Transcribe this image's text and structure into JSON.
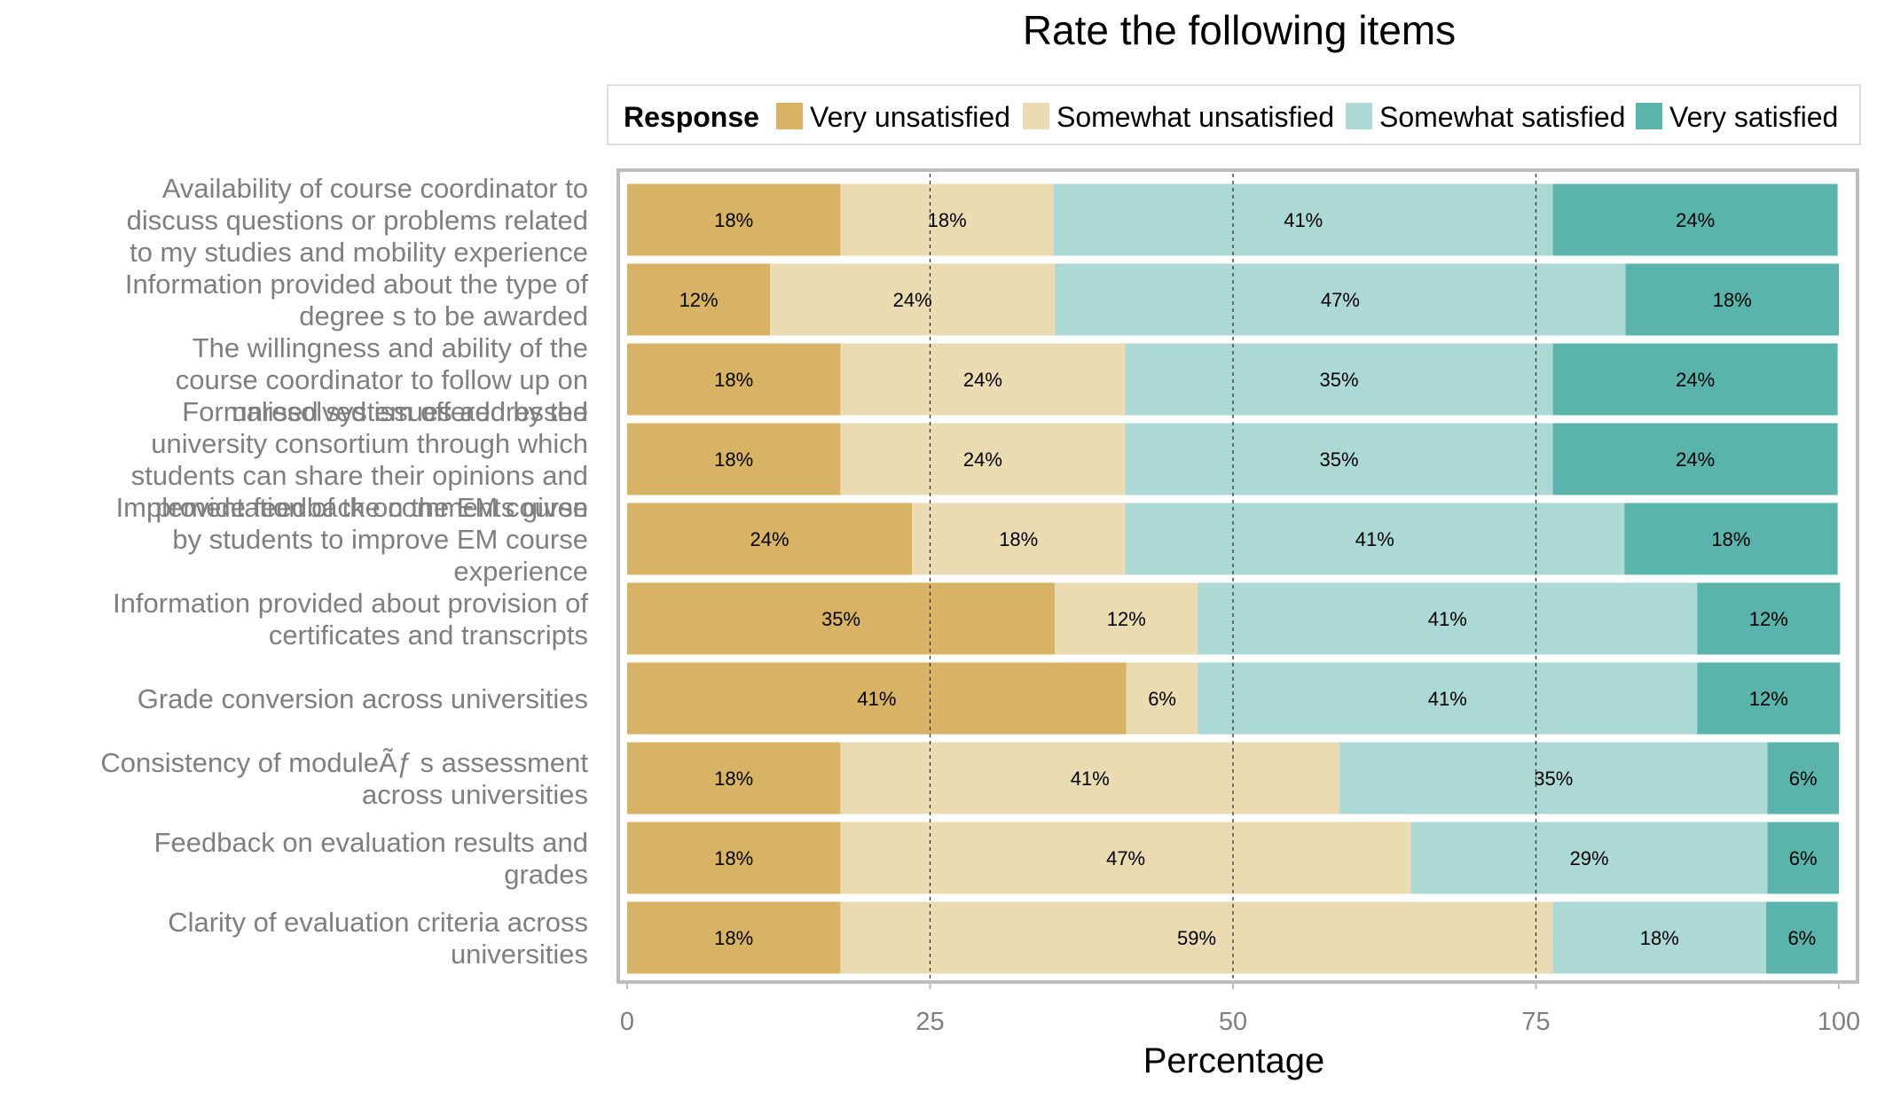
{
  "chart_data": {
    "type": "bar",
    "orientation": "horizontal",
    "stacked": true,
    "title": "Rate the following items",
    "xlabel": "Percentage",
    "ylabel": "",
    "xlim": [
      0,
      100
    ],
    "x_ticks": [
      0,
      25,
      50,
      75,
      100
    ],
    "grid": "dashed vertical lines at 25, 50, 75",
    "legend": {
      "title": "Response",
      "position": "top"
    },
    "categories": [
      "Availability of course coordinator to discuss questions or problems related to my studies and mobility experience",
      "Information provided about the type of degree s to be awarded",
      "The willingness and ability of the course coordinator to follow up on unresolved issues addressed",
      "Formalised system offered by the university consortium through which students can share their opinions and provide feedback on the EM course",
      "Implementation of the comments given by students to improve EM course experience",
      "Information provided about provision of certificates and transcripts",
      "Grade conversion across universities",
      "Consistency of moduleÃƒ s assessment across universities",
      "Feedback on evaluation results and grades",
      "Clarity of evaluation criteria across universities"
    ],
    "category_lines": [
      [
        "Availability of course coordinator to",
        "discuss questions or problems related",
        "to my studies and mobility experience"
      ],
      [
        "Information provided about the type of",
        "degree s to be awarded"
      ],
      [
        "The willingness and ability of the",
        "course coordinator to follow up on",
        "unresolved issues addressed"
      ],
      [
        "Formalised system offered by the",
        "university consortium through which",
        "students can share their opinions and",
        "provide feedback on the EM course"
      ],
      [
        "Implementation of the comments given",
        "by students to improve EM course",
        "experience"
      ],
      [
        "Information provided about provision of",
        "certificates and transcripts"
      ],
      [
        "Grade conversion across universities"
      ],
      [
        "Consistency of moduleÃƒ s assessment",
        "across universities"
      ],
      [
        "Feedback on evaluation results and",
        "grades"
      ],
      [
        "Clarity of evaluation criteria across",
        "universities"
      ]
    ],
    "series": [
      {
        "name": "Very unsatisfied",
        "color": "#d8b365",
        "values": [
          17.6,
          11.8,
          17.6,
          17.6,
          23.5,
          35.3,
          41.2,
          17.6,
          17.6,
          17.6
        ],
        "labels": [
          "18%",
          "12%",
          "18%",
          "18%",
          "24%",
          "35%",
          "41%",
          "18%",
          "18%",
          "18%"
        ]
      },
      {
        "name": "Somewhat unsatisfied",
        "color": "#ebdbb2",
        "values": [
          17.6,
          23.5,
          23.5,
          23.5,
          17.6,
          11.8,
          5.9,
          41.2,
          47.1,
          58.8
        ],
        "labels": [
          "18%",
          "24%",
          "24%",
          "24%",
          "18%",
          "12%",
          "6%",
          "41%",
          "47%",
          "59%"
        ]
      },
      {
        "name": "Somewhat satisfied",
        "color": "#acd9d5",
        "values": [
          41.2,
          47.1,
          35.3,
          35.3,
          41.2,
          41.2,
          41.2,
          35.3,
          29.4,
          17.6
        ],
        "labels": [
          "41%",
          "47%",
          "35%",
          "35%",
          "41%",
          "41%",
          "41%",
          "35%",
          "29%",
          "18%"
        ]
      },
      {
        "name": "Very satisfied",
        "color": "#5ab4ac",
        "values": [
          23.5,
          17.6,
          23.5,
          23.5,
          17.6,
          11.8,
          11.8,
          5.9,
          5.9,
          5.9
        ],
        "labels": [
          "24%",
          "18%",
          "24%",
          "24%",
          "18%",
          "12%",
          "12%",
          "6%",
          "6%",
          "6%"
        ]
      }
    ]
  }
}
